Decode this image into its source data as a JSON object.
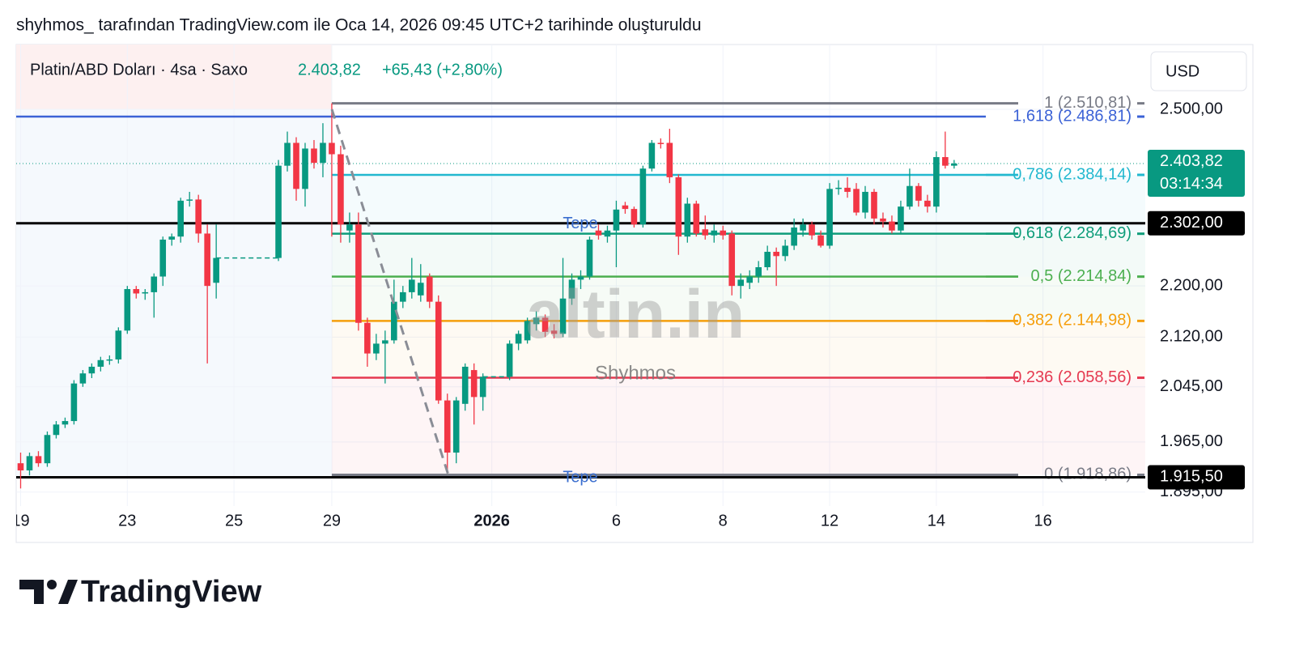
{
  "caption": "shyhmos_ tarafından TradingView.com ile Oca 14, 2026 09:45 UTC+2 tarihinde oluşturuldu",
  "brand": "TradingView",
  "chart_data": {
    "type": "candlestick",
    "title": "Platin/ABD Doları · 4sa · Saxo",
    "legend_price": "2.403,82",
    "legend_change": "+65,43 (+2,80%)",
    "currency": "USD",
    "watermark": [
      "altin.in",
      "Shyhmos"
    ],
    "up_color": "#089981",
    "down_color": "#f23645",
    "log": true,
    "grid": true,
    "ylim": [
      1876,
      2620
    ],
    "yticks": [
      {
        "value": 2500,
        "label": "2.500,00"
      },
      {
        "value": 2200,
        "label": "2.200,00"
      },
      {
        "value": 2120,
        "label": "2.120,00"
      },
      {
        "value": 2045,
        "label": "2.045,00"
      },
      {
        "value": 1965,
        "label": "1.965,00"
      },
      {
        "value": 1895,
        "label": "1.895,00"
      }
    ],
    "categories": [
      "19",
      null,
      null,
      null,
      null,
      null,
      null,
      null,
      null,
      null,
      null,
      null,
      "23",
      null,
      null,
      null,
      null,
      null,
      null,
      null,
      null,
      null,
      null,
      null,
      "25",
      null,
      null,
      null,
      null,
      null,
      null,
      null,
      null,
      null,
      null,
      "29",
      null,
      null,
      null,
      null,
      null,
      null,
      null,
      null,
      null,
      null,
      null,
      null,
      null,
      null,
      null,
      null,
      null,
      "2026",
      null,
      null,
      null,
      null,
      null,
      null,
      null,
      null,
      null,
      null,
      null,
      null,
      null,
      "6",
      null,
      null,
      null,
      null,
      null,
      null,
      null,
      null,
      null,
      null,
      null,
      "8",
      null,
      null,
      null,
      null,
      null,
      null,
      null,
      null,
      null,
      null,
      null,
      "12",
      null,
      null,
      null,
      null,
      null,
      null,
      null,
      null,
      null,
      null,
      null,
      "14",
      null,
      null,
      null,
      null,
      null,
      null,
      null,
      null,
      null,
      null,
      null,
      "16",
      null,
      null,
      null,
      null,
      null,
      null,
      null,
      null,
      null,
      null,
      null
    ],
    "ohlc": {
      "open": [
        1935,
        1925,
        1945,
        1935,
        1975,
        1990,
        1995,
        2050,
        2065,
        2075,
        2085,
        2086,
        2130,
        2195,
        2188,
        2190,
        2215,
        2275,
        2280,
        2340,
        2342,
        2285,
        2205,
        null,
        null,
        null,
        null,
        null,
        null,
        2245,
        2400,
        2440,
        2360,
        2430,
        2405,
        2440,
        2420,
        2290,
        2300,
        2142,
        2095,
        2110,
        2115,
        2175,
        2190,
        2185,
        2215,
        2175,
        2025,
        1950,
        2020,
        2070,
        2030,
        null,
        null,
        2060,
        2110,
        2115,
        2140,
        2150,
        2130,
        2125,
        2180,
        2210,
        2215,
        2290,
        2280,
        2290,
        2332,
        2326,
        2300,
        2395,
        2440,
        2440,
        2380,
        2280,
        2335,
        2292,
        2282,
        2290,
        2285,
        2200,
        2205,
        2215,
        2230,
        2255,
        2248,
        2265,
        2290,
        2300,
        2282,
        2265,
        2360,
        2362,
        2360,
        2320,
        2355,
        2310,
        2305,
        2290,
        2330,
        2365,
        2340,
        2330,
        2415,
        2400,
        null,
        null,
        null,
        null,
        null,
        null,
        null,
        null,
        null,
        null,
        null,
        null,
        null,
        null,
        null,
        null,
        null,
        null,
        null,
        null,
        null
      ],
      "high": [
        1950,
        1950,
        1952,
        1980,
        1995,
        2000,
        2055,
        2070,
        2080,
        2090,
        2092,
        2135,
        2200,
        2200,
        2195,
        2220,
        2280,
        2285,
        2345,
        2355,
        2350,
        2300,
        2300,
        null,
        null,
        null,
        null,
        null,
        null,
        2410,
        2460,
        2450,
        2440,
        2445,
        2475,
        2510.81,
        2435,
        2320,
        2320,
        2150,
        2125,
        2130,
        2210,
        2200,
        2245,
        2235,
        2220,
        2185,
        2035,
        2030,
        2080,
        2080,
        2065,
        null,
        null,
        2115,
        2130,
        2150,
        2160,
        2155,
        2140,
        2245,
        2220,
        2225,
        2280,
        2300,
        2298,
        2340,
        2338,
        2330,
        2400,
        2445,
        2448,
        2465,
        2385,
        2345,
        2340,
        2315,
        2300,
        2298,
        2290,
        2220,
        2225,
        2240,
        2265,
        2262,
        2275,
        2310,
        2310,
        2305,
        2290,
        2370,
        2375,
        2380,
        2370,
        2365,
        2360,
        2320,
        2315,
        2340,
        2395,
        2370,
        2350,
        2425,
        2460,
        2410,
        null,
        null,
        null,
        null,
        null,
        null,
        null,
        null,
        null,
        null,
        null,
        null,
        null,
        null,
        null,
        null,
        null,
        null,
        null,
        null,
        null
      ],
      "low": [
        1900,
        1918,
        1930,
        1930,
        1970,
        1985,
        1990,
        2045,
        2058,
        2068,
        2078,
        2080,
        2125,
        2180,
        2178,
        2150,
        2200,
        2265,
        2270,
        2330,
        2270,
        2080,
        2180,
        null,
        null,
        null,
        null,
        null,
        null,
        2240,
        2390,
        2340,
        2330,
        2395,
        2380,
        2280,
        2270,
        2270,
        2130,
        2075,
        2085,
        2050,
        2110,
        2165,
        2180,
        2175,
        2165,
        2020,
        1925,
        1935,
        2010,
        1990,
        2010,
        null,
        null,
        2055,
        2100,
        2110,
        2130,
        2120,
        2118,
        2120,
        2170,
        2195,
        2210,
        2275,
        2270,
        2230,
        2318,
        2295,
        2295,
        2390,
        2430,
        2370,
        2250,
        2270,
        2280,
        2275,
        2270,
        2275,
        2185,
        2180,
        2195,
        2205,
        2225,
        2200,
        2240,
        2258,
        2280,
        2275,
        2262,
        2260,
        2350,
        2345,
        2315,
        2310,
        2300,
        2295,
        2285,
        2285,
        2325,
        2330,
        2320,
        2320,
        2395,
        2395,
        null,
        null,
        null,
        null,
        null,
        null,
        null,
        null,
        null,
        null,
        null,
        null,
        null,
        null,
        null,
        null,
        null,
        null,
        null,
        null,
        null
      ],
      "close": [
        1925,
        1945,
        1935,
        1975,
        1990,
        1995,
        2050,
        2065,
        2075,
        2085,
        2086,
        2130,
        2195,
        2188,
        2190,
        2215,
        2275,
        2280,
        2340,
        2342,
        2285,
        2200,
        2245,
        null,
        null,
        null,
        null,
        null,
        null,
        2400,
        2440,
        2360,
        2430,
        2405,
        2440,
        2420,
        2300,
        2300,
        2142,
        2095,
        2110,
        2115,
        2175,
        2190,
        2210,
        2205,
        2175,
        2025,
        1950,
        2025,
        2075,
        2030,
        2060,
        null,
        null,
        2110,
        2125,
        2145,
        2150,
        2128,
        2125,
        2180,
        2210,
        2215,
        2275,
        2282,
        2290,
        2325,
        2326,
        2300,
        2395,
        2440,
        2438,
        2380,
        2280,
        2335,
        2285,
        2282,
        2290,
        2282,
        2200,
        2210,
        2215,
        2230,
        2255,
        2248,
        2265,
        2295,
        2300,
        2282,
        2265,
        2360,
        2362,
        2355,
        2320,
        2355,
        2310,
        2305,
        2290,
        2330,
        2365,
        2340,
        2330,
        2415,
        2400,
        2403.82,
        null,
        null,
        null,
        null,
        null,
        null,
        null,
        null,
        null,
        null,
        null,
        null,
        null,
        null,
        null,
        null,
        null,
        null,
        null,
        null,
        null
      ]
    },
    "fib": [
      {
        "level_label": "1 (2.510,81)",
        "value": 2510.81,
        "color": "#787b86"
      },
      {
        "level_label": "1,618 (2.486,81)",
        "value": 2486.81,
        "color": "#3b62d6",
        "extend": "left"
      },
      {
        "level_label": "0,786 (2.384,14)",
        "value": 2384.14,
        "color": "#22b8cf"
      },
      {
        "level_label": "0,618 (2.284,69)",
        "value": 2284.69,
        "color": "#0f9d7a"
      },
      {
        "level_label": "0,5 (2.214,84)",
        "value": 2214.84,
        "color": "#4caf50"
      },
      {
        "level_label": "0,382 (2.144,98)",
        "value": 2144.98,
        "color": "#f59e0b"
      },
      {
        "level_label": "0,236 (2.058,56)",
        "value": 2058.56,
        "color": "#e53950"
      },
      {
        "level_label": "0 (1.918,86)",
        "value": 1918.86,
        "color": "#787b86"
      }
    ],
    "hlines": [
      {
        "value": 2302,
        "label": "2.302,00",
        "text": "Tepe",
        "color": "#000000"
      },
      {
        "value": 1915.5,
        "label": "1.915,50",
        "text": "Tepe",
        "color": "#000000"
      }
    ],
    "last_price": {
      "value": 2403.82,
      "label": "2.403,82",
      "countdown": "03:14:34",
      "color": "#089981"
    }
  }
}
